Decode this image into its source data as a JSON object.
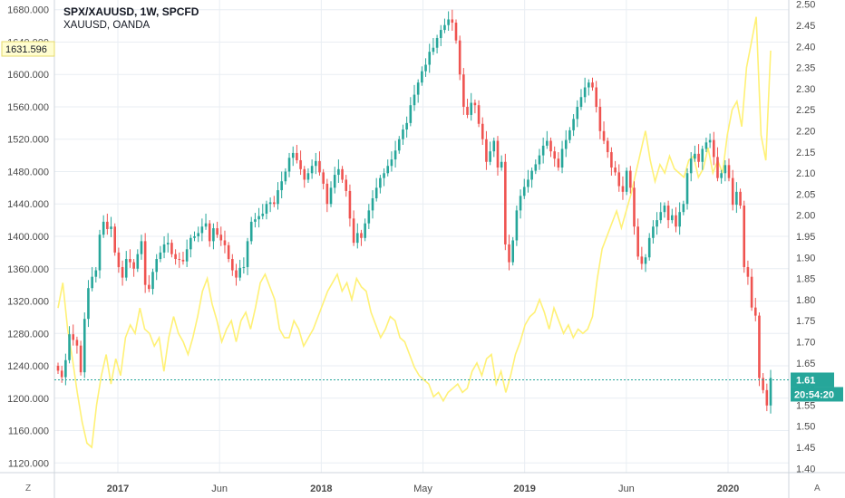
{
  "header": {
    "title": "SPX/XAUUSD, 1W, SPCFD",
    "subtitle": "XAUUSD, OANDA"
  },
  "corner_left": "Z",
  "corner_right": "A",
  "colors": {
    "up": "#26a69a",
    "down": "#ef5350",
    "overlay_line": "#fff176",
    "grid": "#e9eef3",
    "last_price": "#26a69a",
    "crosshair_label_bg": "#fffdd0"
  },
  "chart_data": {
    "type": "candlestick",
    "title": "SPX/XAUUSD, 1W, SPCFD",
    "x_ticks": [
      "2017",
      "Jun",
      "2018",
      "May",
      "2019",
      "Jun",
      "2020"
    ],
    "left_axis": {
      "ticks": [
        "1680.000",
        "1640.000",
        "1600.000",
        "1560.000",
        "1520.000",
        "1480.000",
        "1440.000",
        "1400.000",
        "1360.000",
        "1320.000",
        "1280.000",
        "1240.000",
        "1200.000",
        "1160.000",
        "1120.000"
      ],
      "ylim": [
        1108,
        1692
      ],
      "highlight_label": "1631.596",
      "highlight_value": 1631.596
    },
    "right_axis": {
      "ticks": [
        "2.50",
        "2.45",
        "2.40",
        "2.35",
        "2.30",
        "2.25",
        "2.20",
        "2.15",
        "2.10",
        "2.05",
        "2.00",
        "1.95",
        "1.90",
        "1.85",
        "1.80",
        "1.75",
        "1.70",
        "1.65",
        "1.60",
        "1.55",
        "1.50",
        "1.45",
        "1.40"
      ],
      "ylim": [
        1.39,
        2.51
      ],
      "last_value_label": "1.61",
      "last_value": 1.61,
      "countdown_label": "20:54:20"
    },
    "overlay_series_name": "XAUUSD, OANDA",
    "candles_close": [
      1234,
      1226,
      1247,
      1279,
      1272,
      1265,
      1232,
      1298,
      1336,
      1350,
      1358,
      1402,
      1418,
      1409,
      1412,
      1380,
      1362,
      1349,
      1372,
      1368,
      1360,
      1378,
      1394,
      1340,
      1335,
      1356,
      1372,
      1380,
      1390,
      1392,
      1378,
      1372,
      1371,
      1369,
      1384,
      1398,
      1400,
      1404,
      1412,
      1416,
      1394,
      1410,
      1402,
      1395,
      1389,
      1372,
      1358,
      1349,
      1361,
      1362,
      1394,
      1418,
      1421,
      1425,
      1428,
      1440,
      1442,
      1440,
      1457,
      1468,
      1480,
      1497,
      1503,
      1494,
      1483,
      1470,
      1478,
      1487,
      1493,
      1479,
      1465,
      1440,
      1460,
      1476,
      1483,
      1470,
      1456,
      1422,
      1392,
      1404,
      1398,
      1416,
      1432,
      1447,
      1460,
      1472,
      1478,
      1487,
      1495,
      1506,
      1520,
      1532,
      1540,
      1562,
      1575,
      1590,
      1604,
      1612,
      1628,
      1633,
      1645,
      1655,
      1661,
      1668,
      1664,
      1642,
      1600,
      1560,
      1550,
      1565,
      1562,
      1539,
      1520,
      1492,
      1505,
      1518,
      1485,
      1492,
      1390,
      1368,
      1395,
      1432,
      1450,
      1461,
      1470,
      1481,
      1489,
      1500,
      1512,
      1518,
      1505,
      1496,
      1485,
      1508,
      1519,
      1531,
      1545,
      1560,
      1572,
      1584,
      1590,
      1584,
      1560,
      1530,
      1518,
      1504,
      1485,
      1479,
      1462,
      1455,
      1481,
      1460,
      1412,
      1375,
      1366,
      1374,
      1398,
      1412,
      1420,
      1430,
      1438,
      1420,
      1426,
      1412,
      1430,
      1440,
      1478,
      1496,
      1502,
      1492,
      1508,
      1516,
      1519,
      1498,
      1472,
      1478,
      1488,
      1472,
      1439,
      1455,
      1438,
      1362,
      1350,
      1312,
      1302,
      1225,
      1210,
      1191,
      1225
    ],
    "overlay_values": [
      1.78,
      1.84,
      1.73,
      1.66,
      1.58,
      1.51,
      1.46,
      1.45,
      1.55,
      1.62,
      1.67,
      1.6,
      1.66,
      1.62,
      1.71,
      1.74,
      1.72,
      1.78,
      1.73,
      1.72,
      1.69,
      1.71,
      1.63,
      1.71,
      1.76,
      1.72,
      1.7,
      1.67,
      1.71,
      1.76,
      1.82,
      1.85,
      1.79,
      1.75,
      1.7,
      1.73,
      1.75,
      1.7,
      1.75,
      1.77,
      1.73,
      1.78,
      1.84,
      1.86,
      1.83,
      1.8,
      1.73,
      1.71,
      1.71,
      1.75,
      1.73,
      1.69,
      1.71,
      1.73,
      1.76,
      1.79,
      1.82,
      1.84,
      1.86,
      1.82,
      1.84,
      1.8,
      1.85,
      1.83,
      1.82,
      1.77,
      1.74,
      1.71,
      1.73,
      1.76,
      1.75,
      1.71,
      1.7,
      1.67,
      1.64,
      1.62,
      1.61,
      1.6,
      1.57,
      1.58,
      1.56,
      1.58,
      1.59,
      1.6,
      1.58,
      1.59,
      1.63,
      1.65,
      1.62,
      1.66,
      1.67,
      1.6,
      1.63,
      1.58,
      1.62,
      1.67,
      1.7,
      1.74,
      1.76,
      1.77,
      1.8,
      1.77,
      1.73,
      1.78,
      1.75,
      1.72,
      1.74,
      1.71,
      1.73,
      1.72,
      1.73,
      1.76,
      1.85,
      1.92,
      1.95,
      1.98,
      2.01,
      1.97,
      2.01,
      2.05,
      2.1,
      2.15,
      2.2,
      2.13,
      2.08,
      2.12,
      2.1,
      2.14,
      2.11,
      2.1,
      2.09,
      2.13,
      2.14,
      2.09,
      2.11,
      2.16,
      2.1,
      2.13,
      2.1,
      2.19,
      2.25,
      2.27,
      2.21,
      2.35,
      2.41,
      2.47,
      2.19,
      2.13,
      2.39
    ]
  }
}
